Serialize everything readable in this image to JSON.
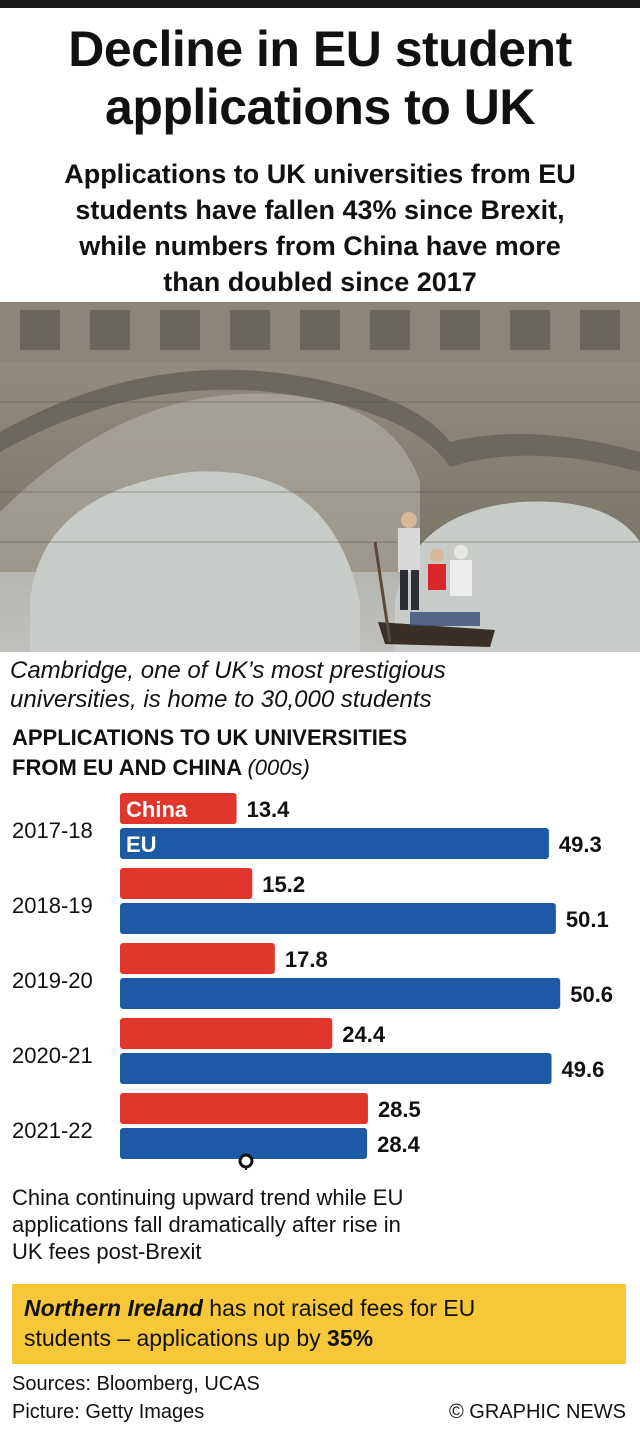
{
  "header": {
    "title_line1": "Decline in EU student",
    "title_line2": "applications to UK",
    "subtitle_line1": "Applications to UK universities from EU",
    "subtitle_line2": "students have fallen 43% since Brexit,",
    "subtitle_line3": "while numbers from China have more",
    "subtitle_line4": "than doubled since 2017"
  },
  "photo": {
    "caption_line1": "Cambridge, one of UK’s most prestigious",
    "caption_line2": "universities, is home to 30,000 students"
  },
  "chart_data": {
    "type": "bar",
    "orientation": "horizontal",
    "title": "Applications to UK Universities from EU and China",
    "title_line1": "Applications to UK Universities",
    "title_line2": "from EU and China",
    "unit": "(000s)",
    "categories": [
      "2017-18",
      "2018-19",
      "2019-20",
      "2020-21",
      "2021-22"
    ],
    "series": [
      {
        "name": "China",
        "color": "#e0362b",
        "values": [
          13.4,
          15.2,
          17.8,
          24.4,
          28.5
        ]
      },
      {
        "name": "EU",
        "color": "#1d5aa6",
        "values": [
          49.3,
          50.1,
          50.6,
          49.6,
          28.4
        ]
      }
    ],
    "xlim": [
      0,
      60
    ],
    "grid": false,
    "legend": "inline-first-category"
  },
  "notes": {
    "trend_line1": "China continuing upward trend while EU",
    "trend_line2": "applications fall dramatically after rise in",
    "trend_line3": "UK fees post-Brexit",
    "callout_bold": "Northern Ireland",
    "callout_rest": " has not raised fees for EU",
    "callout_line2": "students – applications up by ",
    "callout_pct": "35%",
    "callout_color": "#f7c73a"
  },
  "footer": {
    "sources": "Sources: Bloomberg, UCAS",
    "picture": "Picture: Getty Images",
    "credit": "© GRAPHIC NEWS"
  }
}
